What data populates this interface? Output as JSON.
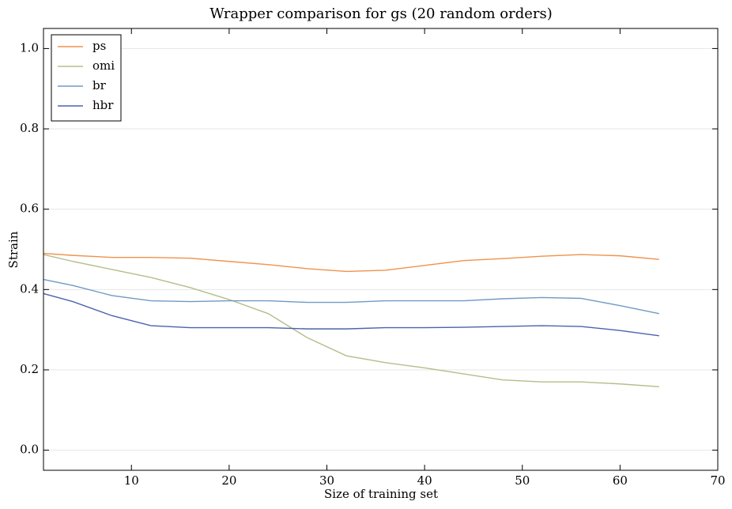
{
  "chart_data": {
    "type": "line",
    "title": "Wrapper comparison for gs (20 random orders)",
    "x_label": "Size of training set",
    "y_label": "Strain",
    "x": [
      1,
      4,
      8,
      12,
      16,
      20,
      24,
      28,
      32,
      36,
      40,
      44,
      48,
      52,
      56,
      60,
      64
    ],
    "series": [
      {
        "name": "ps",
        "color": "#f0924b",
        "values": [
          0.49,
          0.485,
          0.48,
          0.48,
          0.478,
          0.47,
          0.462,
          0.452,
          0.445,
          0.448,
          0.46,
          0.472,
          0.477,
          0.483,
          0.487,
          0.484,
          0.475
        ]
      },
      {
        "name": "omi",
        "color": "#b5bd8a",
        "values": [
          0.487,
          0.47,
          0.45,
          0.43,
          0.405,
          0.375,
          0.34,
          0.28,
          0.235,
          0.218,
          0.205,
          0.19,
          0.175,
          0.17,
          0.17,
          0.165,
          0.158
        ]
      },
      {
        "name": "br",
        "color": "#6f9ac4",
        "values": [
          0.425,
          0.41,
          0.385,
          0.372,
          0.37,
          0.372,
          0.372,
          0.368,
          0.368,
          0.372,
          0.372,
          0.372,
          0.377,
          0.38,
          0.378,
          0.36,
          0.34
        ]
      },
      {
        "name": "hbr",
        "color": "#4a63ad",
        "values": [
          0.39,
          0.37,
          0.335,
          0.31,
          0.305,
          0.305,
          0.305,
          0.302,
          0.302,
          0.305,
          0.305,
          0.306,
          0.308,
          0.31,
          0.308,
          0.298,
          0.285
        ]
      }
    ],
    "xlim": [
      1,
      70
    ],
    "ylim": [
      -0.05,
      1.05
    ],
    "xticks": [
      10,
      20,
      30,
      40,
      50,
      60,
      70
    ],
    "yticks": [
      {
        "value": 0,
        "label": "0.0"
      },
      0.2,
      0.4,
      0.6,
      0.8,
      {
        "value": 1,
        "label": "1.0"
      }
    ],
    "grid": true,
    "legend": "upper left"
  }
}
